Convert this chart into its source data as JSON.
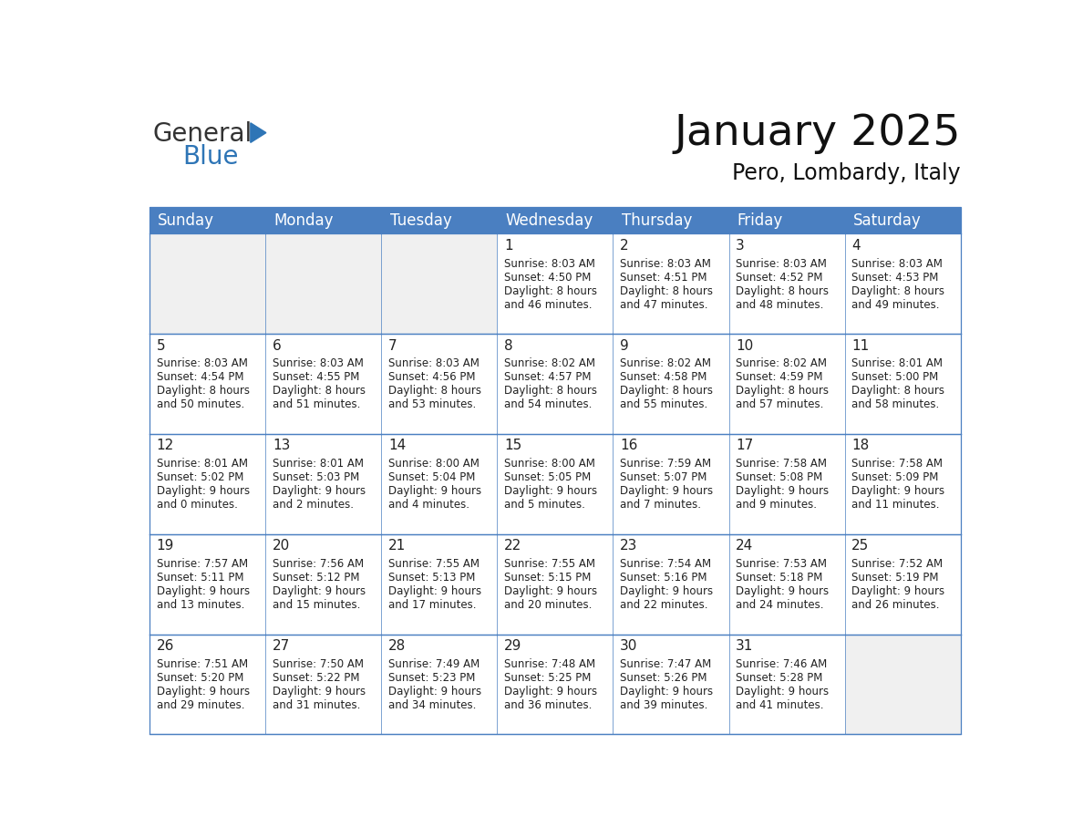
{
  "title": "January 2025",
  "subtitle": "Pero, Lombardy, Italy",
  "header_color": "#4a7fc1",
  "header_text_color": "#FFFFFF",
  "cell_bg_white": "#FFFFFF",
  "cell_bg_gray": "#f0f0f0",
  "border_color": "#4a7fc1",
  "text_color": "#222222",
  "day_num_color": "#222222",
  "day_names": [
    "Sunday",
    "Monday",
    "Tuesday",
    "Wednesday",
    "Thursday",
    "Friday",
    "Saturday"
  ],
  "title_fontsize": 34,
  "subtitle_fontsize": 17,
  "header_fontsize": 12,
  "day_num_fontsize": 11,
  "cell_fontsize": 8.5,
  "logo_color1": "#333333",
  "logo_color2": "#2E75B6",
  "logo_tri_color": "#2E75B6",
  "weeks": [
    [
      {
        "day": "",
        "sunrise": "",
        "sunset": "",
        "daylight": ""
      },
      {
        "day": "",
        "sunrise": "",
        "sunset": "",
        "daylight": ""
      },
      {
        "day": "",
        "sunrise": "",
        "sunset": "",
        "daylight": ""
      },
      {
        "day": "1",
        "sunrise": "8:03 AM",
        "sunset": "4:50 PM",
        "daylight_line1": "Daylight: 8 hours",
        "daylight_line2": "and 46 minutes."
      },
      {
        "day": "2",
        "sunrise": "8:03 AM",
        "sunset": "4:51 PM",
        "daylight_line1": "Daylight: 8 hours",
        "daylight_line2": "and 47 minutes."
      },
      {
        "day": "3",
        "sunrise": "8:03 AM",
        "sunset": "4:52 PM",
        "daylight_line1": "Daylight: 8 hours",
        "daylight_line2": "and 48 minutes."
      },
      {
        "day": "4",
        "sunrise": "8:03 AM",
        "sunset": "4:53 PM",
        "daylight_line1": "Daylight: 8 hours",
        "daylight_line2": "and 49 minutes."
      }
    ],
    [
      {
        "day": "5",
        "sunrise": "8:03 AM",
        "sunset": "4:54 PM",
        "daylight_line1": "Daylight: 8 hours",
        "daylight_line2": "and 50 minutes."
      },
      {
        "day": "6",
        "sunrise": "8:03 AM",
        "sunset": "4:55 PM",
        "daylight_line1": "Daylight: 8 hours",
        "daylight_line2": "and 51 minutes."
      },
      {
        "day": "7",
        "sunrise": "8:03 AM",
        "sunset": "4:56 PM",
        "daylight_line1": "Daylight: 8 hours",
        "daylight_line2": "and 53 minutes."
      },
      {
        "day": "8",
        "sunrise": "8:02 AM",
        "sunset": "4:57 PM",
        "daylight_line1": "Daylight: 8 hours",
        "daylight_line2": "and 54 minutes."
      },
      {
        "day": "9",
        "sunrise": "8:02 AM",
        "sunset": "4:58 PM",
        "daylight_line1": "Daylight: 8 hours",
        "daylight_line2": "and 55 minutes."
      },
      {
        "day": "10",
        "sunrise": "8:02 AM",
        "sunset": "4:59 PM",
        "daylight_line1": "Daylight: 8 hours",
        "daylight_line2": "and 57 minutes."
      },
      {
        "day": "11",
        "sunrise": "8:01 AM",
        "sunset": "5:00 PM",
        "daylight_line1": "Daylight: 8 hours",
        "daylight_line2": "and 58 minutes."
      }
    ],
    [
      {
        "day": "12",
        "sunrise": "8:01 AM",
        "sunset": "5:02 PM",
        "daylight_line1": "Daylight: 9 hours",
        "daylight_line2": "and 0 minutes."
      },
      {
        "day": "13",
        "sunrise": "8:01 AM",
        "sunset": "5:03 PM",
        "daylight_line1": "Daylight: 9 hours",
        "daylight_line2": "and 2 minutes."
      },
      {
        "day": "14",
        "sunrise": "8:00 AM",
        "sunset": "5:04 PM",
        "daylight_line1": "Daylight: 9 hours",
        "daylight_line2": "and 4 minutes."
      },
      {
        "day": "15",
        "sunrise": "8:00 AM",
        "sunset": "5:05 PM",
        "daylight_line1": "Daylight: 9 hours",
        "daylight_line2": "and 5 minutes."
      },
      {
        "day": "16",
        "sunrise": "7:59 AM",
        "sunset": "5:07 PM",
        "daylight_line1": "Daylight: 9 hours",
        "daylight_line2": "and 7 minutes."
      },
      {
        "day": "17",
        "sunrise": "7:58 AM",
        "sunset": "5:08 PM",
        "daylight_line1": "Daylight: 9 hours",
        "daylight_line2": "and 9 minutes."
      },
      {
        "day": "18",
        "sunrise": "7:58 AM",
        "sunset": "5:09 PM",
        "daylight_line1": "Daylight: 9 hours",
        "daylight_line2": "and 11 minutes."
      }
    ],
    [
      {
        "day": "19",
        "sunrise": "7:57 AM",
        "sunset": "5:11 PM",
        "daylight_line1": "Daylight: 9 hours",
        "daylight_line2": "and 13 minutes."
      },
      {
        "day": "20",
        "sunrise": "7:56 AM",
        "sunset": "5:12 PM",
        "daylight_line1": "Daylight: 9 hours",
        "daylight_line2": "and 15 minutes."
      },
      {
        "day": "21",
        "sunrise": "7:55 AM",
        "sunset": "5:13 PM",
        "daylight_line1": "Daylight: 9 hours",
        "daylight_line2": "and 17 minutes."
      },
      {
        "day": "22",
        "sunrise": "7:55 AM",
        "sunset": "5:15 PM",
        "daylight_line1": "Daylight: 9 hours",
        "daylight_line2": "and 20 minutes."
      },
      {
        "day": "23",
        "sunrise": "7:54 AM",
        "sunset": "5:16 PM",
        "daylight_line1": "Daylight: 9 hours",
        "daylight_line2": "and 22 minutes."
      },
      {
        "day": "24",
        "sunrise": "7:53 AM",
        "sunset": "5:18 PM",
        "daylight_line1": "Daylight: 9 hours",
        "daylight_line2": "and 24 minutes."
      },
      {
        "day": "25",
        "sunrise": "7:52 AM",
        "sunset": "5:19 PM",
        "daylight_line1": "Daylight: 9 hours",
        "daylight_line2": "and 26 minutes."
      }
    ],
    [
      {
        "day": "26",
        "sunrise": "7:51 AM",
        "sunset": "5:20 PM",
        "daylight_line1": "Daylight: 9 hours",
        "daylight_line2": "and 29 minutes."
      },
      {
        "day": "27",
        "sunrise": "7:50 AM",
        "sunset": "5:22 PM",
        "daylight_line1": "Daylight: 9 hours",
        "daylight_line2": "and 31 minutes."
      },
      {
        "day": "28",
        "sunrise": "7:49 AM",
        "sunset": "5:23 PM",
        "daylight_line1": "Daylight: 9 hours",
        "daylight_line2": "and 34 minutes."
      },
      {
        "day": "29",
        "sunrise": "7:48 AM",
        "sunset": "5:25 PM",
        "daylight_line1": "Daylight: 9 hours",
        "daylight_line2": "and 36 minutes."
      },
      {
        "day": "30",
        "sunrise": "7:47 AM",
        "sunset": "5:26 PM",
        "daylight_line1": "Daylight: 9 hours",
        "daylight_line2": "and 39 minutes."
      },
      {
        "day": "31",
        "sunrise": "7:46 AM",
        "sunset": "5:28 PM",
        "daylight_line1": "Daylight: 9 hours",
        "daylight_line2": "and 41 minutes."
      },
      {
        "day": "",
        "sunrise": "",
        "sunset": "",
        "daylight_line1": "",
        "daylight_line2": ""
      }
    ]
  ]
}
